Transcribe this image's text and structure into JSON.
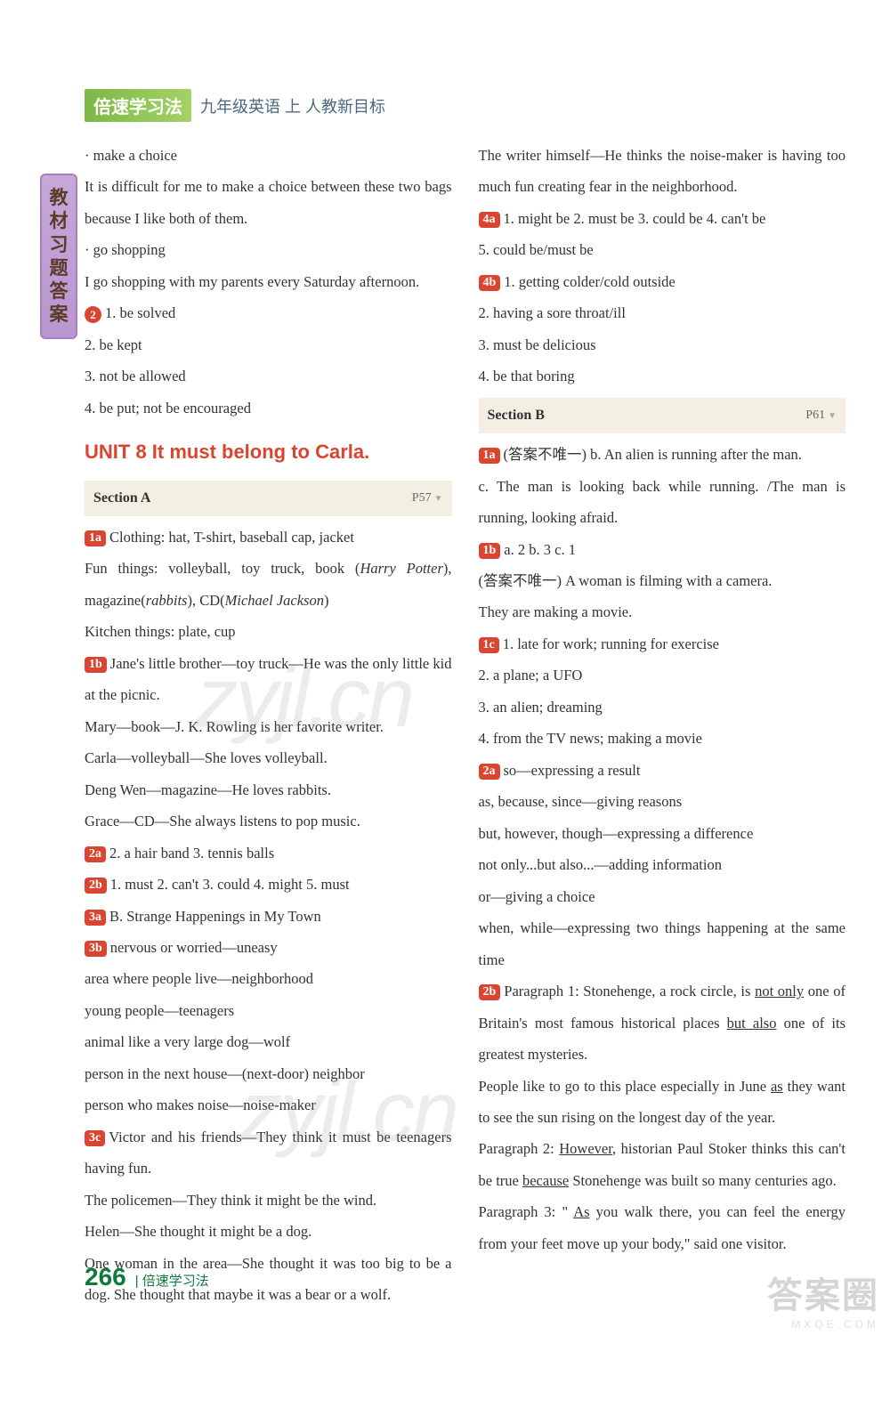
{
  "header": {
    "logo": "倍速学习法",
    "subtitle": "九年级英语  上  人教新目标"
  },
  "sideTab": "教材习题答案",
  "watermark": "zyjl.cn",
  "left": {
    "l1": "· make a choice",
    "l2": "It is difficult for me to make a choice between these two bags because I like both of them.",
    "l3": "· go shopping",
    "l4": "I go shopping with my parents every Saturday afternoon.",
    "badge2": "2",
    "l5a": "1. be solved",
    "l5b": "2. be kept",
    "l5c": "3. not be allowed",
    "l5d": "4. be put;  not be encouraged",
    "unitTitle": "UNIT 8   It must belong to Carla.",
    "sectionA": "Section A",
    "sectionA_page": "P57",
    "b1a": "1a",
    "l6": "Clothing: hat, T-shirt, baseball cap, jacket",
    "l7_pre": "Fun things: volleyball, toy truck, book (",
    "l7_it1": "Harry Potter",
    "l7_mid": "), magazine(",
    "l7_it2": "rabbits",
    "l7_mid2": "), CD(",
    "l7_it3": "Michael Jackson",
    "l7_end": ")",
    "l8": "Kitchen things: plate, cup",
    "b1b": "1b",
    "l9": "Jane's little brother—toy truck—He was the only little kid at the picnic.",
    "l10": "Mary—book—J. K. Rowling is her favorite writer.",
    "l11": "Carla—volleyball—She loves volleyball.",
    "l12": "Deng Wen—magazine—He loves rabbits.",
    "l13": "Grace—CD—She always listens to pop music.",
    "b2a": "2a",
    "l14": "2. a hair band   3. tennis balls",
    "b2b": "2b",
    "l15": "1. must   2. can't   3. could   4. might   5. must",
    "b3a": "3a",
    "l16": "B. Strange Happenings in My Town",
    "b3b": "3b",
    "l17": "nervous or worried—uneasy",
    "l18": "area where people live—neighborhood",
    "l19": "young people—teenagers",
    "l20": "animal like a very large dog—wolf",
    "l21": "person in the next house—(next-door) neighbor",
    "l22": "person who makes noise—noise-maker",
    "b3c": "3c",
    "l23": "Victor and his friends—They think it must be teenagers having fun.",
    "l24": "The policemen—They think it might be the wind.",
    "l25": "Helen—She thought it might be a dog.",
    "l26": "One woman in the area—She thought it was too big to be a dog. She thought that maybe it was a bear or a wolf."
  },
  "right": {
    "r1": "The writer himself—He thinks the noise-maker is having too much fun creating fear in the neighborhood.",
    "b4a": "4a",
    "r2": "1. might be   2. must be   3. could be   4. can't be",
    "r3": "5. could be/must be",
    "b4b": "4b",
    "r4": "1. getting colder/cold outside",
    "r5": "2. having a sore throat/ill",
    "r6": "3. must be delicious",
    "r7": "4. be that boring",
    "sectionB": "Section B",
    "sectionB_page": "P61",
    "b1a": "1a",
    "r8": "(答案不唯一) b. An alien is running after the man.",
    "r9": "c. The man is looking back while running. /The man is running, looking afraid.",
    "b1b": "1b",
    "r10": "a. 2   b. 3   c. 1",
    "r11": "(答案不唯一) A woman is filming with a camera.",
    "r12": "They are making a movie.",
    "b1c": "1c",
    "r13": "1. late for work; running for exercise",
    "r14": "2. a plane; a UFO",
    "r15": "3. an alien; dreaming",
    "r16": "4. from the TV news; making a movie",
    "b2a": "2a",
    "r17": "so—expressing a result",
    "r18": "as, because, since—giving reasons",
    "r19": "but, however, though—expressing a difference",
    "r20": "not only...but also...—adding information",
    "r21": "or—giving a choice",
    "r22": "when, while—expressing two things happening at the same time",
    "b2b": "2b",
    "r23_pre": "Paragraph 1: Stonehenge, a rock circle, is ",
    "r23_u1": "not only",
    "r23_mid": " one of Britain's most famous historical places ",
    "r23_u2": "but also",
    "r23_end": " one of its greatest mysteries.",
    "r24_pre": "People like to go to this place especially in June ",
    "r24_u": "as",
    "r24_end": " they want to see the sun rising on the longest day of the year.",
    "r25_pre": "Paragraph 2: ",
    "r25_u1": "However",
    "r25_mid": ", historian Paul Stoker thinks this can't be true ",
    "r25_u2": "because",
    "r25_end": " Stonehenge was built so many centuries ago.",
    "r26_pre": "Paragraph 3: \" ",
    "r26_u": "As",
    "r26_end": " you walk there, you can feel the energy from your feet move up your body,\" said one visitor."
  },
  "footer": {
    "pageNum": "266",
    "text": "| 倍速学习法"
  },
  "corner": {
    "big": "答案圈",
    "small": "MXQE.COM"
  }
}
